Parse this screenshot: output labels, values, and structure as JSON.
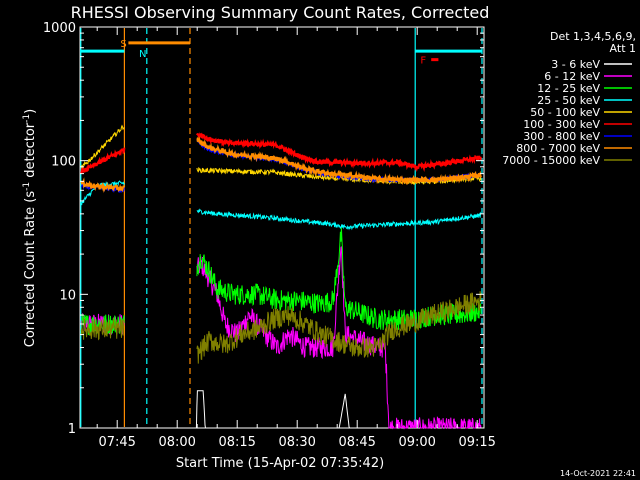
{
  "chart_data": {
    "type": "line",
    "title": "RHESSI Observing Summary Count Rates, Corrected",
    "xlabel": "Start Time (15-Apr-02 07:35:42)",
    "ylabel": "Corrected Count Rate (s",
    "ylabel_sup1": "-1",
    "ylabel_mid": " detector",
    "ylabel_sup2": "-1",
    "ylabel_end": ")",
    "yscale": "log",
    "ylim": [
      1,
      1000
    ],
    "xlim_min": [
      35.7,
      136.7
    ],
    "y_ticks": [
      {
        "v": 1,
        "label": "1"
      },
      {
        "v": 10,
        "label": "10"
      },
      {
        "v": 100,
        "label": "100"
      },
      {
        "v": 1000,
        "label": "1000"
      }
    ],
    "x_ticks": [
      {
        "m": 45,
        "label": "07:45"
      },
      {
        "m": 60,
        "label": "08:00"
      },
      {
        "m": 75,
        "label": "08:15"
      },
      {
        "m": 90,
        "label": "08:30"
      },
      {
        "m": 105,
        "label": "08:45"
      },
      {
        "m": 120,
        "label": "09:00"
      },
      {
        "m": 135,
        "label": "09:15"
      }
    ],
    "legend_title1": "Det 1,3,4,5,6,9,",
    "legend_title2": "Att 1",
    "footer_date": "14-Oct-2021 22:41",
    "attenuator_marks": [
      {
        "label": "S",
        "color": "#ff8c00",
        "start": 47.6,
        "end": 40.0,
        "y": 760
      },
      {
        "label": "N",
        "color": "#00ffff",
        "start": 52.4,
        "end": 52.4,
        "y": 640
      },
      {
        "label": "F",
        "color": "#ff0000",
        "start": 122.5,
        "end": 125.3,
        "y": 570
      }
    ],
    "night_bars": [
      {
        "start": 35.7,
        "end": 46.8,
        "y": 660,
        "color": "#00ffff"
      },
      {
        "start": 47.8,
        "end": 63.2,
        "y": 760,
        "color": "#ff8c00"
      },
      {
        "start": 119.5,
        "end": 136.2,
        "y": 660,
        "color": "#00ffff"
      }
    ],
    "vlines": [
      {
        "m": 35.9,
        "color": "#00ffff",
        "dash": false
      },
      {
        "m": 46.8,
        "color": "#ff8c00",
        "dash": false
      },
      {
        "m": 52.4,
        "color": "#00ffff",
        "dash": true
      },
      {
        "m": 63.2,
        "color": "#ff8c00",
        "dash": true
      },
      {
        "m": 119.5,
        "color": "#00ffff",
        "dash": false
      },
      {
        "m": 136.2,
        "color": "#00ffff",
        "dash": true
      }
    ],
    "gaps": [
      [
        46.8,
        64.8
      ]
    ],
    "series": [
      {
        "name": "3 - 6 keV",
        "color": "#ffffff",
        "points": [
          [
            64.8,
            1
          ],
          [
            65.0,
            1.9
          ],
          [
            66.5,
            1.9
          ],
          [
            67.0,
            1
          ],
          [
            100.5,
            1
          ],
          [
            102,
            1.8
          ],
          [
            103,
            1
          ],
          [
            136,
            1
          ]
        ]
      },
      {
        "name": "6 - 12 keV",
        "color": "#ff00ff",
        "points": [
          [
            36,
            6
          ],
          [
            46.5,
            6
          ],
          [
            64.8,
            15
          ],
          [
            66,
            17
          ],
          [
            68,
            13
          ],
          [
            70,
            10
          ],
          [
            72,
            6
          ],
          [
            75,
            5
          ],
          [
            78,
            7
          ],
          [
            82,
            5
          ],
          [
            85,
            4
          ],
          [
            88,
            5
          ],
          [
            92,
            4
          ],
          [
            96,
            4
          ],
          [
            99,
            4
          ],
          [
            101,
            25
          ],
          [
            102,
            5
          ],
          [
            110,
            4
          ],
          [
            112,
            4
          ],
          [
            113,
            1
          ],
          [
            136,
            1
          ]
        ]
      },
      {
        "name": "12 - 25 keV",
        "color": "#00ff00",
        "points": [
          [
            36,
            6
          ],
          [
            46.5,
            6
          ],
          [
            64.8,
            16
          ],
          [
            66,
            19
          ],
          [
            68,
            15
          ],
          [
            70,
            11
          ],
          [
            74,
            10
          ],
          [
            80,
            10
          ],
          [
            85,
            9
          ],
          [
            90,
            9
          ],
          [
            96,
            8.5
          ],
          [
            99,
            9
          ],
          [
            101,
            28
          ],
          [
            102,
            8
          ],
          [
            110,
            6.5
          ],
          [
            118,
            6.5
          ],
          [
            125,
            7
          ],
          [
            130,
            7
          ],
          [
            136,
            7.5
          ]
        ]
      },
      {
        "name": "25 - 50 keV",
        "color": "#00ffff",
        "points": [
          [
            36,
            48
          ],
          [
            40,
            65
          ],
          [
            46.5,
            68
          ],
          [
            64.8,
            42
          ],
          [
            70,
            40
          ],
          [
            76,
            39
          ],
          [
            85,
            37
          ],
          [
            92,
            35
          ],
          [
            97,
            34
          ],
          [
            102,
            32
          ],
          [
            110,
            33
          ],
          [
            118,
            34
          ],
          [
            125,
            35
          ],
          [
            130,
            37
          ],
          [
            136,
            39
          ]
        ]
      },
      {
        "name": "50 - 100 keV",
        "color": "#ffd700",
        "points": [
          [
            36,
            88
          ],
          [
            40,
            115
          ],
          [
            46.5,
            180
          ],
          [
            64.8,
            85
          ],
          [
            70,
            84
          ],
          [
            76,
            83
          ],
          [
            84,
            82
          ],
          [
            90,
            78
          ],
          [
            98,
            74
          ],
          [
            105,
            72
          ],
          [
            112,
            70
          ],
          [
            120,
            69
          ],
          [
            126,
            70
          ],
          [
            131,
            73
          ],
          [
            136,
            74
          ]
        ]
      },
      {
        "name": "100 - 300 keV",
        "color": "#ff0000",
        "points": [
          [
            36,
            82
          ],
          [
            40,
            95
          ],
          [
            46.5,
            120
          ],
          [
            64.8,
            160
          ],
          [
            68,
            145
          ],
          [
            73,
            135
          ],
          [
            78,
            135
          ],
          [
            85,
            130
          ],
          [
            90,
            110
          ],
          [
            95,
            98
          ],
          [
            100,
            97
          ],
          [
            105,
            96
          ],
          [
            110,
            96
          ],
          [
            115,
            97
          ],
          [
            120,
            90
          ],
          [
            126,
            95
          ],
          [
            131,
            100
          ],
          [
            136,
            105
          ]
        ]
      },
      {
        "name": "300 - 800 keV",
        "color": "#0000ff",
        "points": [
          [
            36,
            65
          ],
          [
            40,
            63
          ],
          [
            46.5,
            60
          ],
          [
            64.8,
            140
          ],
          [
            68,
            120
          ],
          [
            74,
            110
          ],
          [
            80,
            105
          ],
          [
            86,
            100
          ],
          [
            92,
            85
          ],
          [
            98,
            78
          ],
          [
            104,
            75
          ],
          [
            110,
            72
          ],
          [
            118,
            72
          ],
          [
            125,
            72
          ],
          [
            131,
            76
          ],
          [
            136,
            78
          ]
        ]
      },
      {
        "name": "800 - 7000 keV",
        "color": "#ff8c00",
        "points": [
          [
            36,
            68
          ],
          [
            40,
            64
          ],
          [
            46.5,
            62
          ],
          [
            64.8,
            145
          ],
          [
            68,
            125
          ],
          [
            74,
            112
          ],
          [
            80,
            108
          ],
          [
            86,
            102
          ],
          [
            92,
            87
          ],
          [
            98,
            80
          ],
          [
            104,
            77
          ],
          [
            110,
            73
          ],
          [
            118,
            72
          ],
          [
            125,
            72
          ],
          [
            131,
            75
          ],
          [
            136,
            78
          ]
        ]
      },
      {
        "name": "7000 - 15000 keV",
        "color": "#808000",
        "points": [
          [
            36,
            5.5
          ],
          [
            46.5,
            5.5
          ],
          [
            64.8,
            3.5
          ],
          [
            68,
            4.5
          ],
          [
            72,
            4.2
          ],
          [
            76,
            5
          ],
          [
            80,
            5.5
          ],
          [
            84,
            6.5
          ],
          [
            88,
            7
          ],
          [
            92,
            6
          ],
          [
            96,
            5
          ],
          [
            100,
            4.5
          ],
          [
            104,
            4
          ],
          [
            110,
            4
          ],
          [
            114,
            5.5
          ],
          [
            118,
            6
          ],
          [
            124,
            7
          ],
          [
            130,
            8
          ],
          [
            136,
            9
          ]
        ]
      }
    ]
  }
}
